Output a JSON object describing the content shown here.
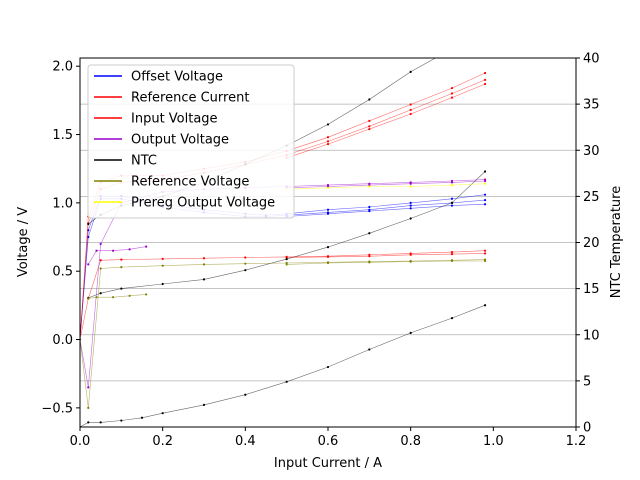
{
  "chart_data": {
    "type": "scatter",
    "title": "",
    "xlabel": "Input Current / A",
    "ylabel": "Voltage / V",
    "y2label": "NTC Temperature",
    "xlim": [
      0,
      1.2
    ],
    "ylim": [
      -0.64,
      2.06
    ],
    "y2lim": [
      0,
      40
    ],
    "x_ticks": [
      "0.0",
      "0.2",
      "0.4",
      "0.6",
      "0.8",
      "1.0",
      "1.2"
    ],
    "y_ticks": [
      "-0.5",
      "0.0",
      "0.5",
      "1.0",
      "1.5",
      "2.0"
    ],
    "y2_ticks": [
      "0",
      "5",
      "10",
      "15",
      "20",
      "25",
      "30",
      "35",
      "40"
    ],
    "grid": "horizontal lines on secondary axis",
    "legend_position": "upper-left",
    "series": [
      {
        "name": "Offset Voltage",
        "color": "#0000ff",
        "axis": "left",
        "runs": [
          {
            "x": [
              0,
              0.02,
              0.05,
              0.1,
              0.2,
              0.3,
              0.4,
              0.45,
              0.5,
              0.6,
              0.7,
              0.8,
              0.9,
              0.98
            ],
            "y": [
              0.0,
              0.8,
              1.05,
              1.05,
              0.99,
              0.95,
              0.92,
              0.91,
              0.92,
              0.95,
              0.97,
              1.0,
              1.03,
              1.06
            ]
          },
          {
            "x": [
              0,
              0.02,
              0.05,
              0.1,
              0.2,
              0.3,
              0.4,
              0.45,
              0.5,
              0.6,
              0.7,
              0.8,
              0.9,
              0.98
            ],
            "y": [
              0.0,
              0.75,
              1.03,
              1.03,
              0.97,
              0.93,
              0.9,
              0.9,
              0.91,
              0.93,
              0.95,
              0.98,
              1.0,
              1.02
            ]
          },
          {
            "x": [
              0.5,
              0.6,
              0.7,
              0.8,
              0.9,
              0.98
            ],
            "y": [
              0.9,
              0.92,
              0.94,
              0.96,
              0.98,
              0.99
            ]
          }
        ]
      },
      {
        "name": "Reference Current",
        "color": "#ff0000",
        "axis": "left",
        "runs": [
          {
            "x": [
              0,
              0.02,
              0.05,
              0.1,
              0.2,
              0.3,
              0.4,
              0.5,
              0.6,
              0.7,
              0.8,
              0.9,
              0.98
            ],
            "y": [
              0.0,
              0.3,
              0.58,
              0.585,
              0.59,
              0.595,
              0.6,
              0.605,
              0.61,
              0.62,
              0.63,
              0.64,
              0.65
            ]
          },
          {
            "x": [
              0.5,
              0.6,
              0.7,
              0.8,
              0.9,
              0.98
            ],
            "y": [
              0.6,
              0.605,
              0.61,
              0.62,
              0.625,
              0.63
            ]
          }
        ]
      },
      {
        "name": "Input Voltage",
        "color": "#ff0000",
        "axis": "left",
        "runs": [
          {
            "x": [
              0,
              0.02,
              0.05,
              0.1,
              0.2,
              0.3,
              0.4,
              0.5,
              0.6,
              0.7,
              0.8,
              0.9,
              0.98
            ],
            "y": [
              0.0,
              0.9,
              1.15,
              1.2,
              1.2,
              1.25,
              1.3,
              1.38,
              1.48,
              1.6,
              1.72,
              1.84,
              1.95
            ]
          },
          {
            "x": [
              0,
              0.02,
              0.05,
              0.1,
              0.2,
              0.3,
              0.4,
              0.5,
              0.6,
              0.7,
              0.8,
              0.9,
              0.98
            ],
            "y": [
              0.0,
              0.85,
              1.1,
              1.15,
              1.17,
              1.22,
              1.28,
              1.35,
              1.45,
              1.56,
              1.68,
              1.8,
              1.9
            ]
          },
          {
            "x": [
              0.5,
              0.6,
              0.7,
              0.8,
              0.9,
              0.98
            ],
            "y": [
              1.33,
              1.43,
              1.54,
              1.65,
              1.77,
              1.87
            ]
          }
        ]
      },
      {
        "name": "Output Voltage",
        "color": "#9900cc",
        "axis": "left",
        "runs": [
          {
            "x": [
              0,
              0.02,
              0.05,
              0.1,
              0.2,
              0.3,
              0.4,
              0.5,
              0.6,
              0.7,
              0.8,
              0.9,
              0.98
            ],
            "y": [
              0.0,
              -0.35,
              0.7,
              1.0,
              1.08,
              1.1,
              1.11,
              1.12,
              1.13,
              1.14,
              1.15,
              1.16,
              1.17
            ]
          },
          {
            "x": [
              0.02,
              0.04,
              0.08,
              0.12,
              0.16
            ],
            "y": [
              0.55,
              0.65,
              0.65,
              0.66,
              0.68
            ]
          },
          {
            "x": [
              0.5,
              0.6,
              0.7,
              0.8,
              0.9,
              0.98
            ],
            "y": [
              1.11,
              1.12,
              1.13,
              1.14,
              1.15,
              1.16
            ]
          }
        ]
      },
      {
        "name": "NTC",
        "color": "#000000",
        "axis": "right",
        "runs": [
          {
            "x": [
              0,
              0.02,
              0.05,
              0.1,
              0.15,
              0.2,
              0.3,
              0.4,
              0.5,
              0.6,
              0.7,
              0.8,
              0.9,
              0.98
            ],
            "y": [
              0.0,
              0.5,
              0.5,
              0.7,
              1.0,
              1.5,
              2.4,
              3.5,
              4.9,
              6.5,
              8.4,
              10.2,
              11.8,
              13.2
            ]
          },
          {
            "x": [
              0.02,
              0.05,
              0.1,
              0.2,
              0.3,
              0.4,
              0.5,
              0.6,
              0.7,
              0.8,
              0.9,
              0.98
            ],
            "y": [
              14.0,
              14.5,
              15.0,
              15.5,
              16.0,
              17.0,
              18.2,
              19.5,
              21.0,
              22.6,
              24.3,
              27.7
            ]
          },
          {
            "x": [
              0.02,
              0.05,
              0.1,
              0.2,
              0.3,
              0.4,
              0.5,
              0.6,
              0.7,
              0.8,
              0.9
            ],
            "y": [
              22.0,
              23.0,
              24.0,
              25.0,
              26.5,
              28.5,
              30.5,
              32.8,
              35.5,
              38.5,
              41.0
            ]
          }
        ]
      },
      {
        "name": "Reference Voltage",
        "color": "#808000",
        "axis": "left",
        "runs": [
          {
            "x": [
              0,
              0.02,
              0.05,
              0.1,
              0.2,
              0.3,
              0.4,
              0.5,
              0.6,
              0.7,
              0.8,
              0.9,
              0.98
            ],
            "y": [
              0.0,
              -0.5,
              0.52,
              0.53,
              0.54,
              0.55,
              0.555,
              0.56,
              0.565,
              0.57,
              0.575,
              0.58,
              0.585
            ]
          },
          {
            "x": [
              0.02,
              0.04,
              0.08,
              0.12,
              0.16
            ],
            "y": [
              0.3,
              0.31,
              0.31,
              0.32,
              0.33
            ]
          },
          {
            "x": [
              0.5,
              0.6,
              0.7,
              0.8,
              0.9,
              0.98
            ],
            "y": [
              0.55,
              0.56,
              0.565,
              0.57,
              0.575,
              0.575
            ]
          }
        ]
      },
      {
        "name": "Prereg Output Voltage",
        "color": "#ffff00",
        "axis": "left",
        "runs": [
          {
            "x": [
              0.5,
              0.6,
              0.7,
              0.8,
              0.9,
              0.98
            ],
            "y": [
              1.1,
              1.11,
              1.12,
              1.12,
              1.13,
              1.14
            ]
          }
        ]
      }
    ]
  }
}
